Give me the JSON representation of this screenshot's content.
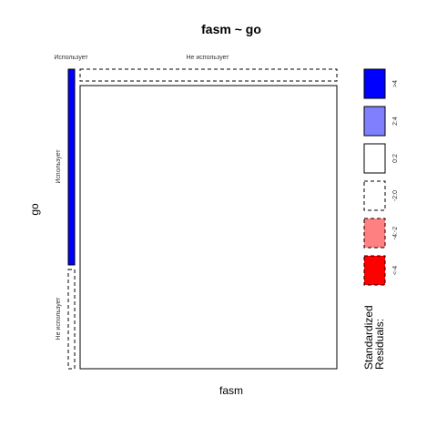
{
  "chart_data": {
    "type": "mosaic",
    "title": "fasm ~ go",
    "xlabel": "fasm",
    "ylabel": "go",
    "x_categories": [
      "Использует",
      "Не использует"
    ],
    "y_categories": [
      "Использует",
      "Не использует"
    ],
    "cells": [
      {
        "x": "Использует",
        "y": "Использует",
        "shade": ">4",
        "color": "#0000ff"
      },
      {
        "x": "Использует",
        "y": "Не использует",
        "shade": "-2:0",
        "color": "#ffffff"
      },
      {
        "x": "Не использует",
        "y": "Использует",
        "shade": "-2:0",
        "color": "#ffffff"
      },
      {
        "x": "Не использует",
        "y": "Не использует",
        "shade": "0:2",
        "color": "#ffffff"
      }
    ],
    "legend": {
      "title_lines": [
        "Standardized",
        "Residuals:"
      ],
      "position": "right",
      "items": [
        {
          "label": ">4",
          "color": "#0000ff",
          "dashed": false
        },
        {
          "label": "2:4",
          "color": "#8080ff",
          "dashed": false
        },
        {
          "label": "0:2",
          "color": "#ffffff",
          "dashed": false
        },
        {
          "label": "-2:0",
          "color": "#ffffff",
          "dashed": true
        },
        {
          "label": "-4:-2",
          "color": "#ff8080",
          "dashed": true
        },
        {
          "label": "<-4",
          "color": "#ff0000",
          "dashed": true
        }
      ]
    }
  }
}
